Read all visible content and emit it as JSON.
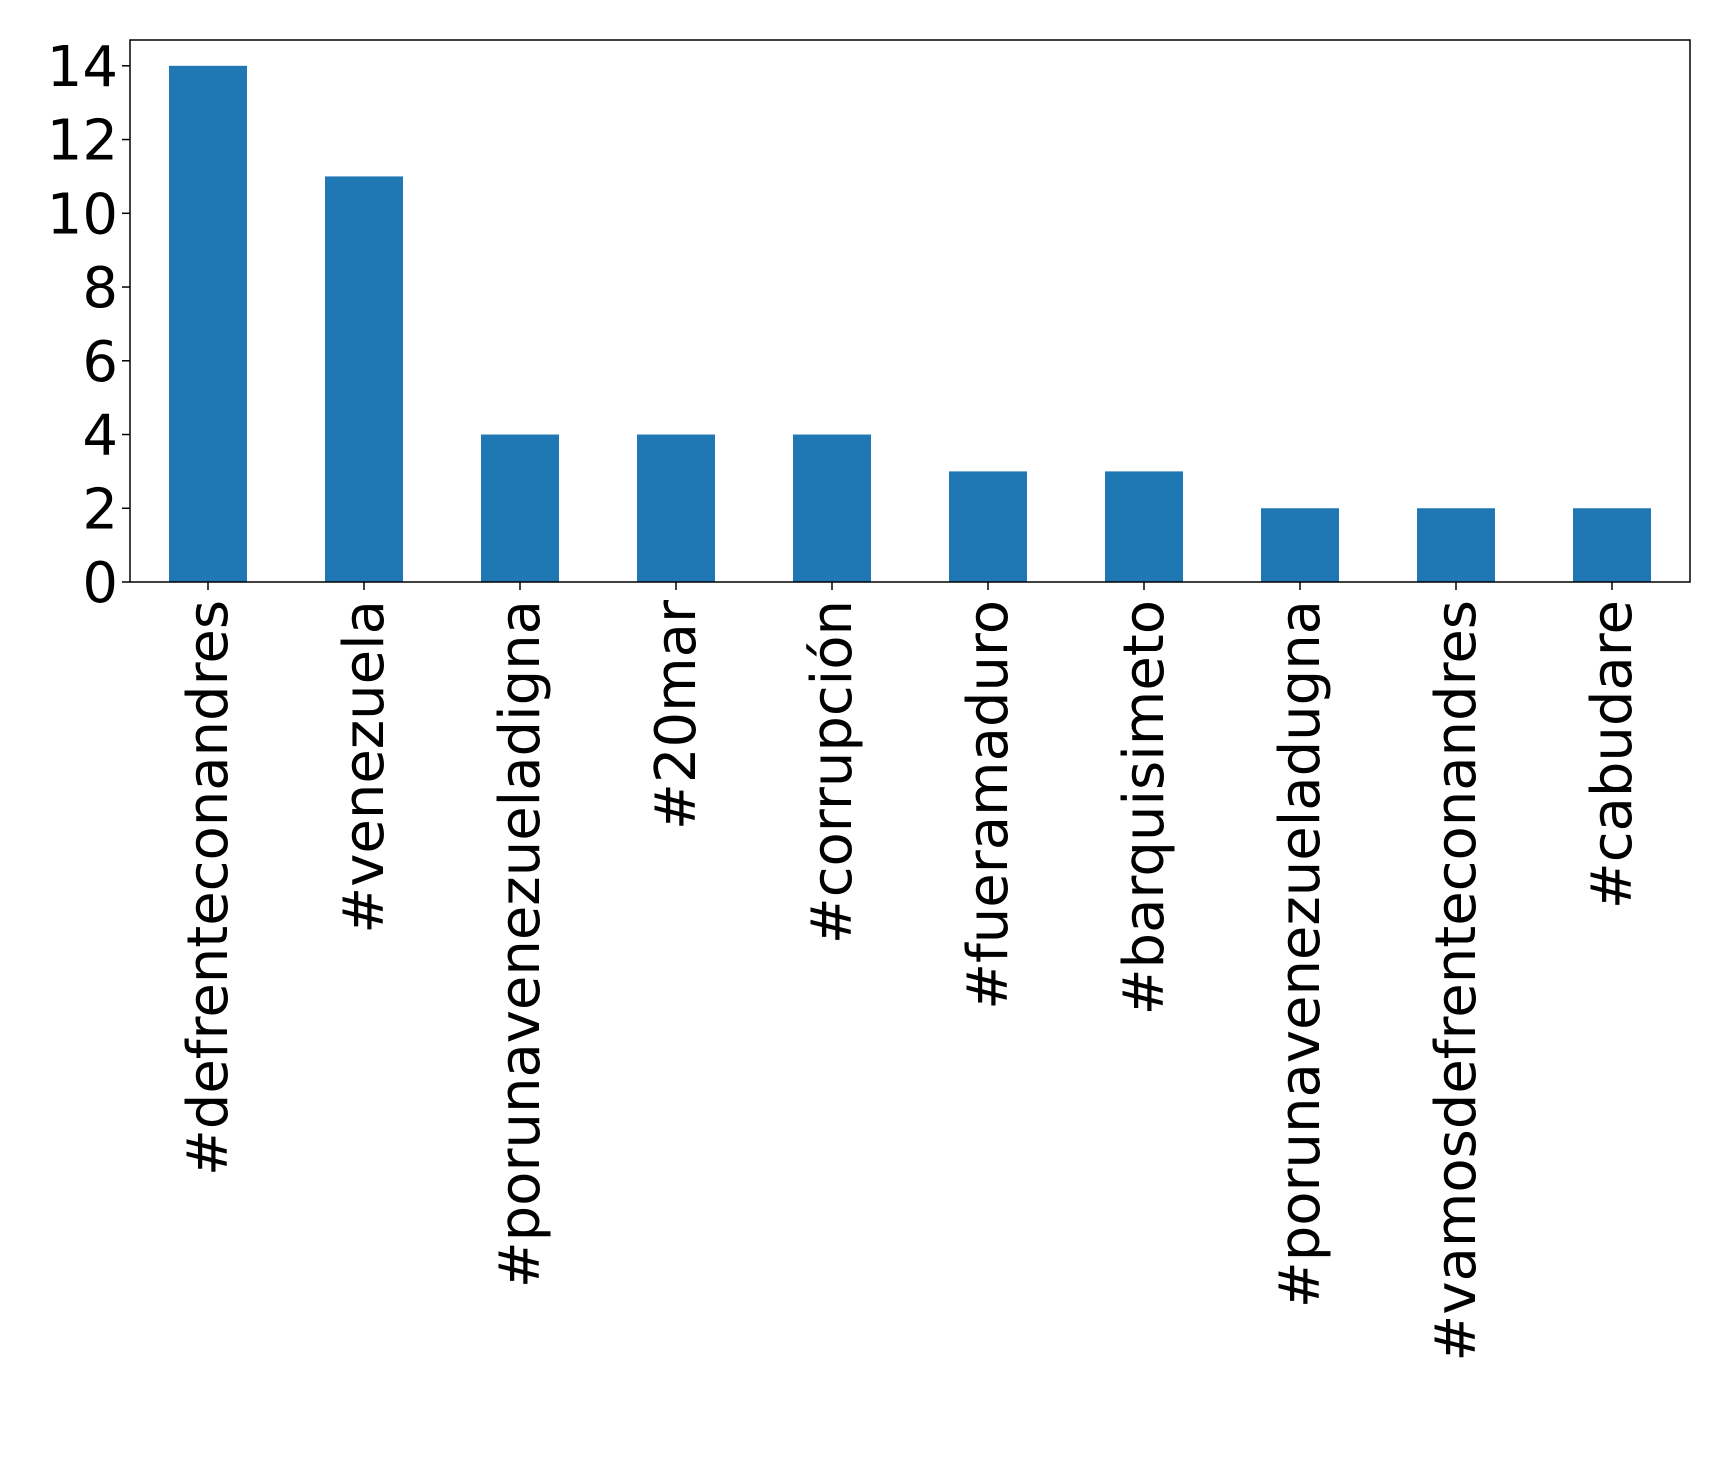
{
  "chart_data": {
    "type": "bar",
    "title": "",
    "xlabel": "",
    "ylabel": "",
    "categories": [
      "#defrenteconandres",
      "#venezuela",
      "#porunavenezueladigna",
      "#20mar",
      "#corrupción",
      "#fueramaduro",
      "#barquisimeto",
      "#porunavenezueladugna",
      "#vamosdefrenteconandres",
      "#cabudare"
    ],
    "values": [
      14,
      11,
      4,
      4,
      4,
      3,
      3,
      2,
      2,
      2
    ],
    "ylim": [
      0,
      14.7
    ],
    "yticks": [
      0,
      2,
      4,
      6,
      8,
      10,
      12,
      14
    ],
    "grid": false,
    "legend": "none",
    "bar_color": "#1f77b4",
    "x_tick_rotation": "vertical"
  }
}
